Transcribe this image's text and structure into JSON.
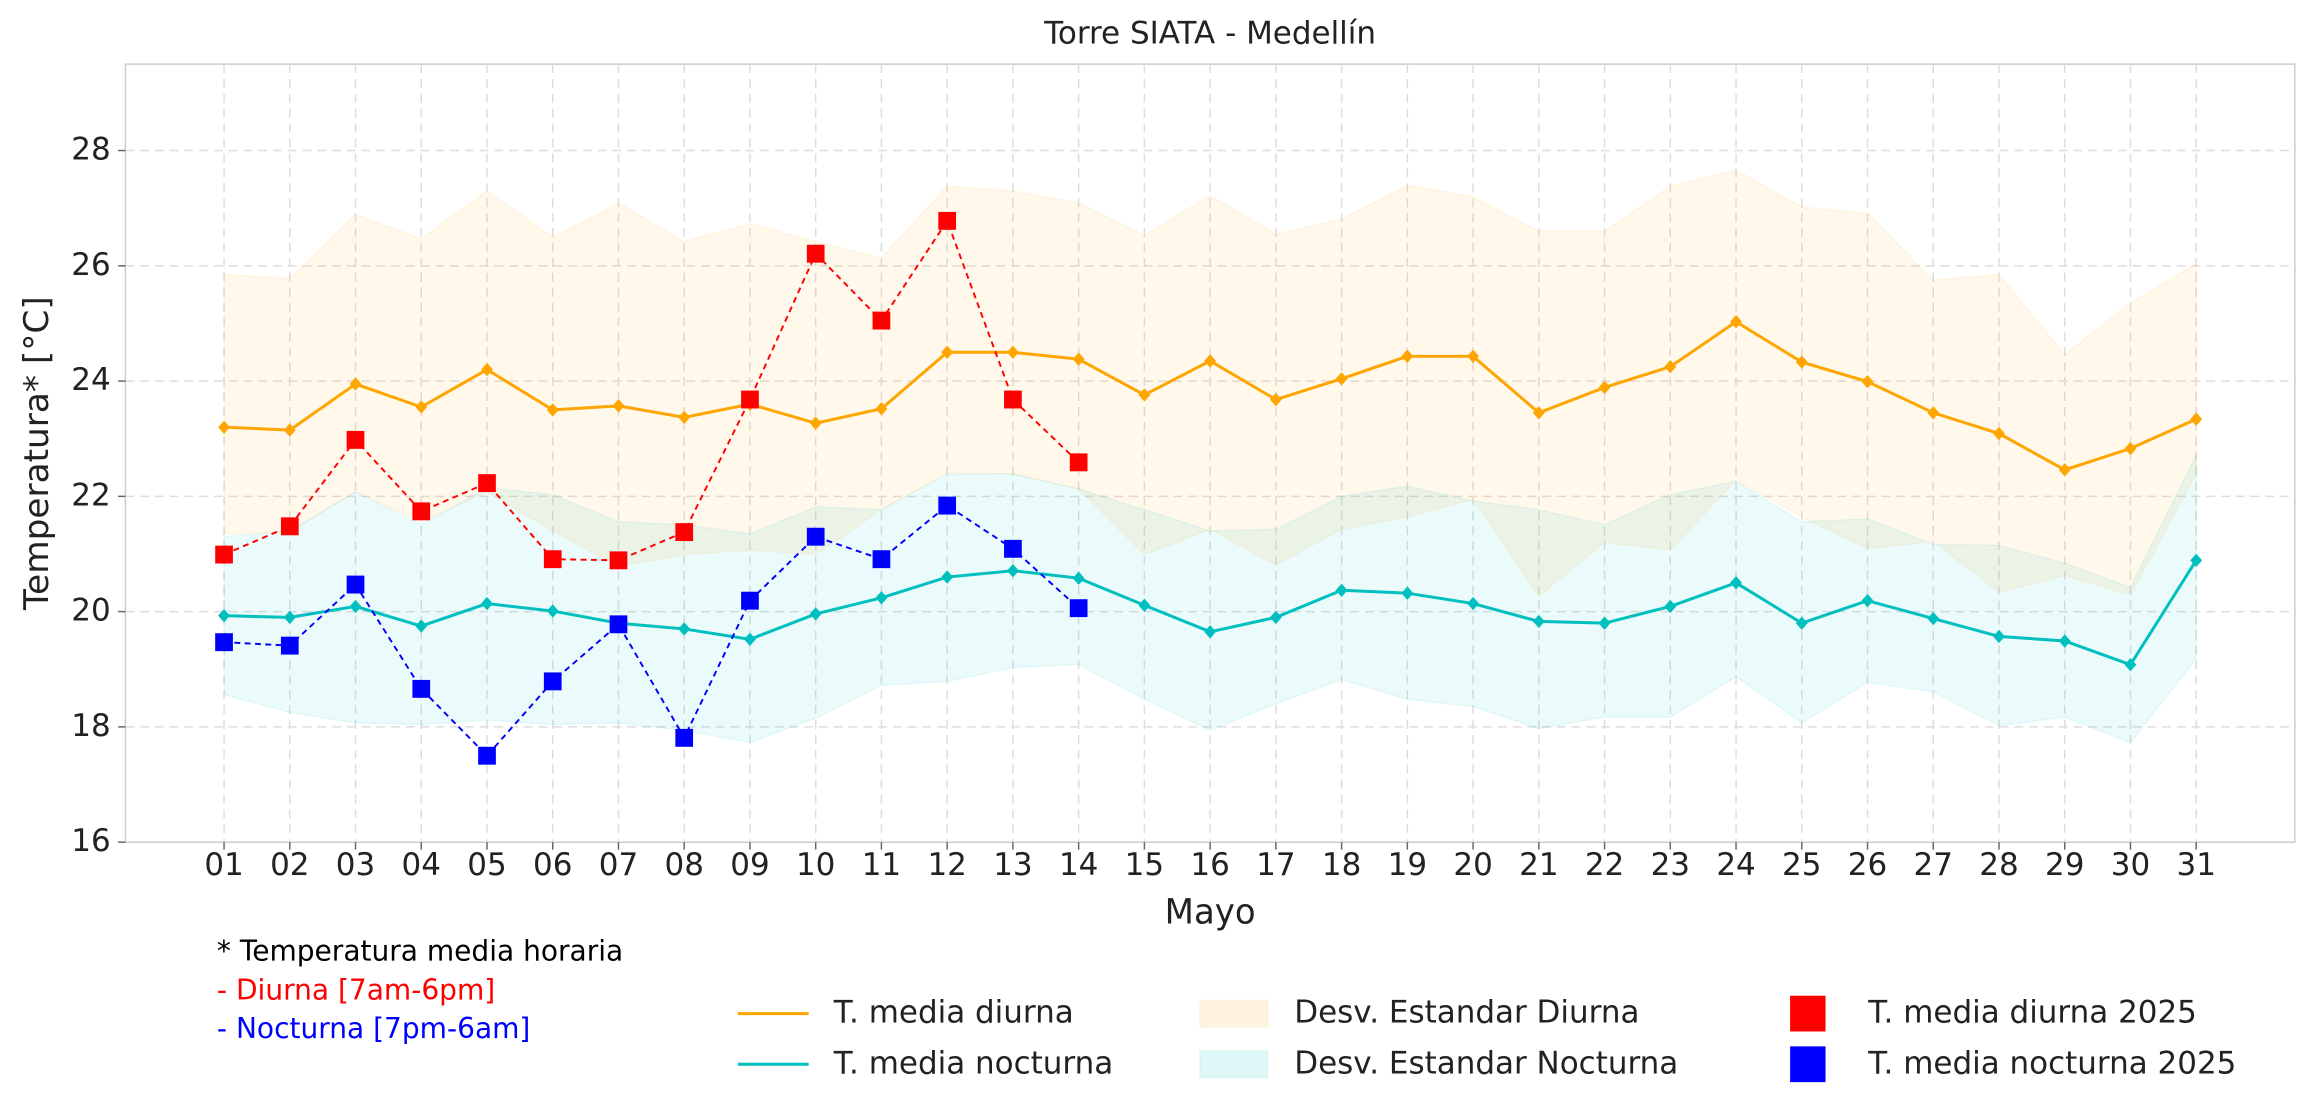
{
  "chart_data": {
    "type": "line",
    "title": "Torre SIATA - Medellín",
    "xlabel": "Mayo",
    "ylabel": "Temperatura* [°C]",
    "categories": [
      "01",
      "02",
      "03",
      "04",
      "05",
      "06",
      "07",
      "08",
      "09",
      "10",
      "11",
      "12",
      "13",
      "14",
      "15",
      "16",
      "17",
      "18",
      "19",
      "20",
      "21",
      "22",
      "23",
      "24",
      "25",
      "26",
      "27",
      "28",
      "29",
      "30",
      "31"
    ],
    "ylim": [
      16,
      29.5
    ],
    "yticks": [
      16,
      18,
      20,
      22,
      24,
      26,
      28
    ],
    "grid": true,
    "series": [
      {
        "name": "T. media diurna",
        "kind": "line",
        "color": "#ffa500",
        "values": [
          23.2,
          23.15,
          23.95,
          23.55,
          24.2,
          23.5,
          23.57,
          23.37,
          23.6,
          23.27,
          23.52,
          24.5,
          24.5,
          24.38,
          23.76,
          24.35,
          23.68,
          24.04,
          24.43,
          24.43,
          23.45,
          23.89,
          24.25,
          25.03,
          24.33,
          23.99,
          23.45,
          23.09,
          22.46,
          22.83,
          23.34
        ]
      },
      {
        "name": "T. media nocturna",
        "kind": "line",
        "color": "#00bfbf",
        "values": [
          19.93,
          19.9,
          20.09,
          19.75,
          20.14,
          20.01,
          19.8,
          19.7,
          19.52,
          19.96,
          20.24,
          20.6,
          20.71,
          20.58,
          20.11,
          19.65,
          19.9,
          20.37,
          20.32,
          20.14,
          19.83,
          19.8,
          20.09,
          20.5,
          19.8,
          20.19,
          19.88,
          19.57,
          19.49,
          19.08,
          20.89
        ]
      },
      {
        "name": "Desv. Estandar Diurna",
        "kind": "band",
        "color": "#ffa500",
        "alpha": 0.08,
        "lower": [
          21.35,
          21.38,
          22.08,
          21.56,
          22.08,
          21.4,
          20.78,
          20.99,
          21.07,
          20.99,
          21.77,
          22.41,
          22.39,
          22.13,
          20.99,
          21.43,
          20.81,
          21.43,
          21.64,
          21.95,
          20.27,
          21.2,
          21.07,
          22.28,
          21.64,
          21.09,
          21.22,
          20.34,
          20.63,
          20.29,
          22.39
        ],
        "upper": [
          25.85,
          25.78,
          26.89,
          26.47,
          27.3,
          26.5,
          27.09,
          26.42,
          26.73,
          26.42,
          26.14,
          27.38,
          27.3,
          27.09,
          26.53,
          27.22,
          26.55,
          26.81,
          27.4,
          27.2,
          26.6,
          26.6,
          27.38,
          27.66,
          27.02,
          26.91,
          25.75,
          25.85,
          24.46,
          25.36,
          26.03
        ]
      },
      {
        "name": "Desv. Estandar Nocturna",
        "kind": "band",
        "color": "#00bfbf",
        "alpha": 0.08,
        "lower": [
          18.56,
          18.25,
          18.07,
          18.04,
          18.12,
          18.04,
          18.07,
          17.94,
          17.73,
          18.15,
          18.72,
          18.79,
          19.03,
          19.08,
          18.48,
          17.94,
          18.4,
          18.82,
          18.48,
          18.35,
          17.97,
          18.17,
          18.17,
          18.87,
          18.07,
          18.77,
          18.61,
          18.02,
          18.17,
          17.73,
          19.18
        ],
        "upper": [
          21.3,
          21.4,
          22.08,
          21.51,
          22.15,
          22.03,
          21.56,
          21.51,
          21.35,
          21.82,
          21.77,
          22.39,
          22.39,
          22.13,
          21.77,
          21.4,
          21.43,
          22.0,
          22.18,
          21.92,
          21.77,
          21.51,
          22.03,
          22.26,
          21.56,
          21.61,
          21.17,
          21.15,
          20.84,
          20.42,
          22.72
        ]
      },
      {
        "name": "T. media diurna 2025",
        "kind": "dashed",
        "color": "#ff0000",
        "values": [
          20.99,
          21.48,
          22.98,
          21.74,
          22.23,
          20.91,
          20.89,
          21.38,
          23.68,
          26.21,
          25.05,
          26.78,
          23.68,
          22.59,
          null,
          null,
          null,
          null,
          null,
          null,
          null,
          null,
          null,
          null,
          null,
          null,
          null,
          null,
          null,
          null,
          null
        ]
      },
      {
        "name": "T. media nocturna 2025",
        "kind": "dashed",
        "color": "#0000ff",
        "values": [
          19.47,
          19.41,
          20.47,
          18.66,
          17.5,
          18.79,
          19.78,
          17.81,
          20.19,
          21.3,
          20.91,
          21.84,
          21.09,
          20.06,
          null,
          null,
          null,
          null,
          null,
          null,
          null,
          null,
          null,
          null,
          null,
          null,
          null,
          null,
          null,
          null,
          null
        ]
      }
    ],
    "annotations": [
      {
        "text": "* Temperatura media horaria",
        "color": "#000000"
      },
      {
        "text": "- Diurna [7am-6pm]",
        "color": "#ff0000"
      },
      {
        "text": "- Nocturna [7pm-6am]",
        "color": "#0000ff"
      }
    ]
  }
}
